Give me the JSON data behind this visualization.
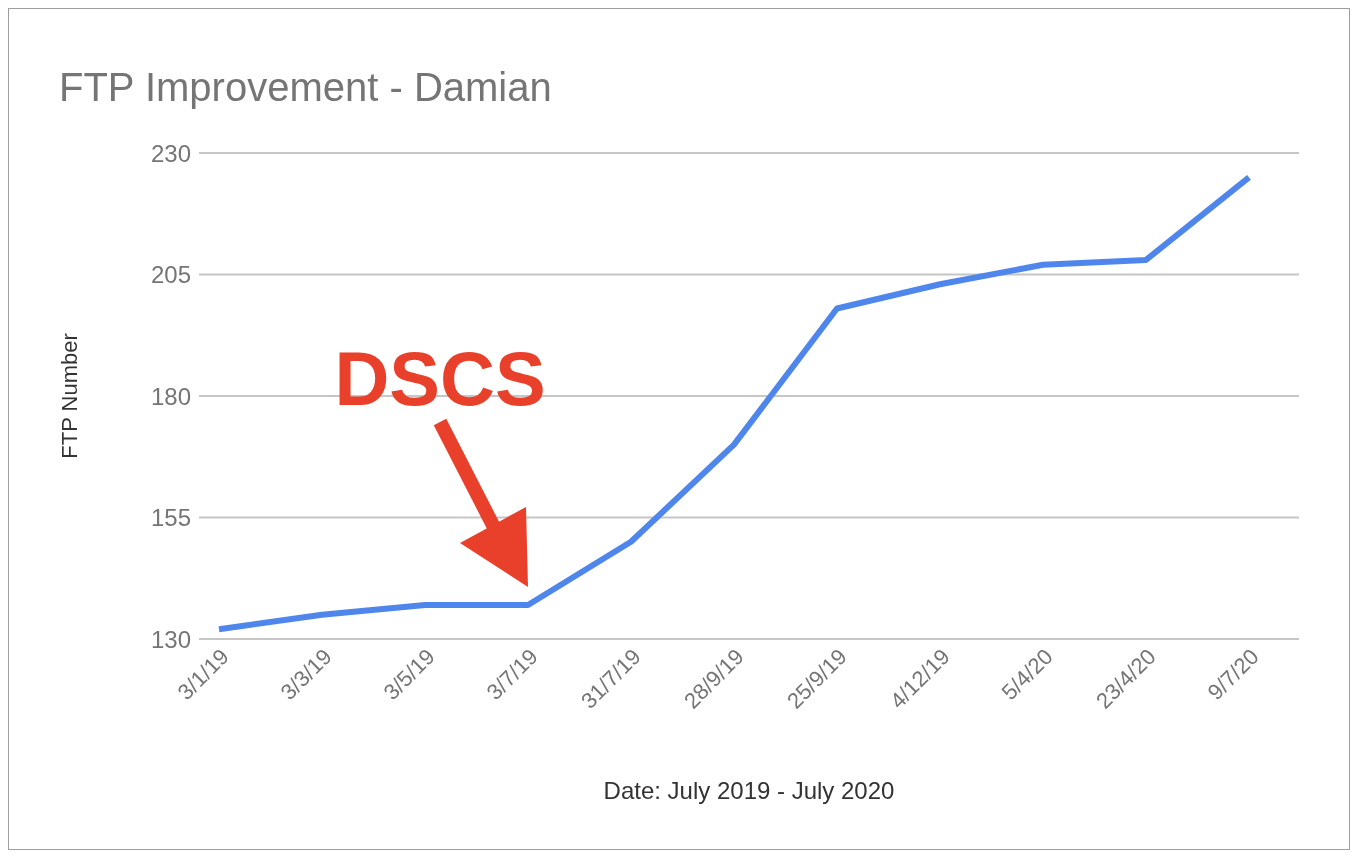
{
  "chart_data": {
    "type": "line",
    "title": "FTP Improvement - Damian",
    "xlabel": "Date: July 2019 - July 2020",
    "ylabel": "FTP Number",
    "categories": [
      "3/1/19",
      "3/3/19",
      "3/5/19",
      "3/7/19",
      "31/7/19",
      "28/9/19",
      "25/9/19",
      "4/12/19",
      "5/4/20",
      "23/4/20",
      "9/7/20"
    ],
    "series": [
      {
        "color": "#4f86ec",
        "values": [
          132,
          135,
          137,
          137,
          150,
          170,
          198,
          203,
          207,
          208,
          225
        ]
      }
    ],
    "ylim": [
      130,
      230
    ],
    "yticks": [
      130,
      155,
      180,
      205,
      230
    ],
    "grid": "y",
    "annotations": [
      {
        "text": "DSCS",
        "x": "3/7/19",
        "y": 137
      }
    ]
  }
}
